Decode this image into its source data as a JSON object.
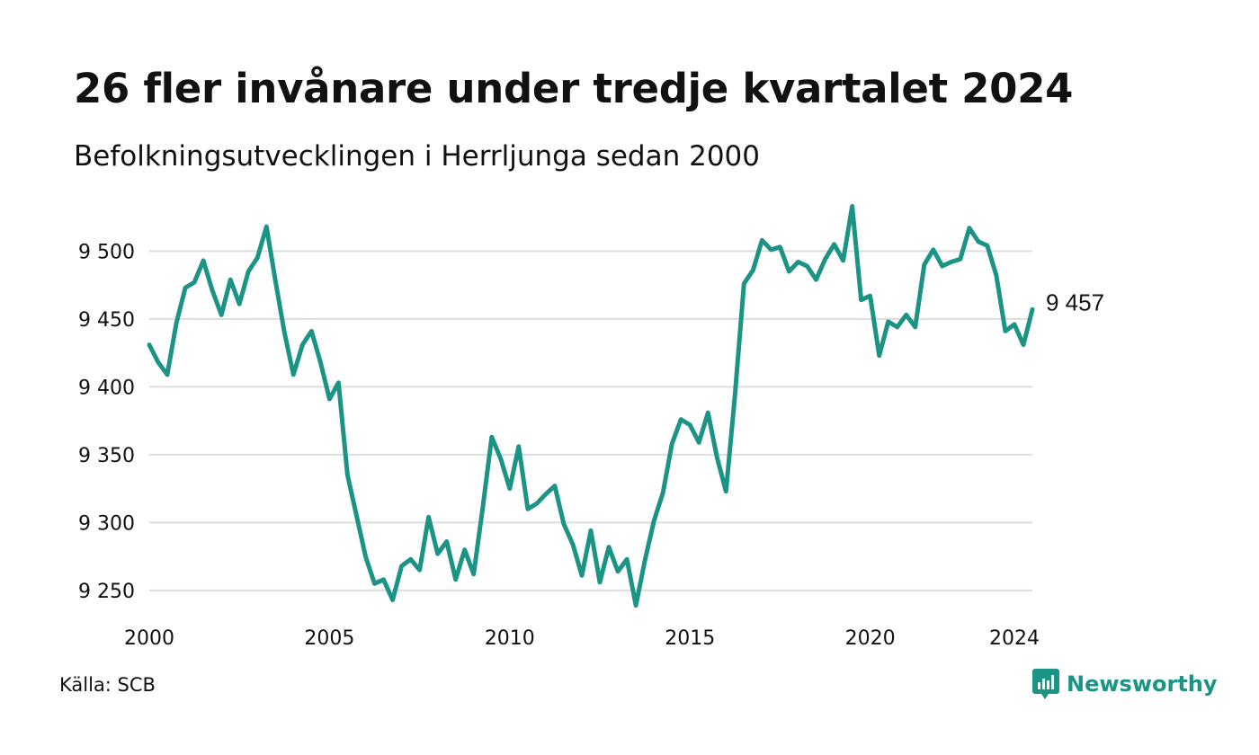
{
  "title": "26 fler invånare under tredje kvartalet 2024",
  "subtitle": "Befolkningsutvecklingen i Herrljunga sedan 2000",
  "source": "Källa: SCB",
  "brand": {
    "name": "Newsworthy",
    "icon": "newsworthy-logo-icon"
  },
  "colors": {
    "line": "#1b9485",
    "grid": "#dddddd",
    "text": "#111111",
    "brand": "#1b9485"
  },
  "chart_data": {
    "type": "line",
    "title": "26 fler invånare under tredje kvartalet 2024",
    "subtitle": "Befolkningsutvecklingen i Herrljunga sedan 2000",
    "xlabel": "",
    "ylabel": "",
    "xlim": [
      2000,
      2024.5
    ],
    "ylim": [
      9240,
      9534
    ],
    "grid": true,
    "x_ticks": [
      2000,
      2005,
      2010,
      2015,
      2020,
      2024
    ],
    "x_tick_labels": [
      "2000",
      "2005",
      "2010",
      "2015",
      "2020",
      "2024"
    ],
    "y_ticks": [
      9250,
      9300,
      9350,
      9400,
      9450,
      9500
    ],
    "y_tick_labels": [
      "9 250",
      "9 300",
      "9 350",
      "9 400",
      "9 450",
      "9 500"
    ],
    "end_label": "9 457",
    "series": [
      {
        "x_start": "2000 Q1",
        "step": "quarter",
        "values": [
          9431,
          9418,
          9409,
          9447,
          9473,
          9477,
          9493,
          9471,
          9453,
          9479,
          9461,
          9485,
          9495,
          9518,
          9478,
          9440,
          9409,
          9431,
          9441,
          9418,
          9391,
          9403,
          9335,
          9305,
          9275,
          9255,
          9258,
          9243,
          9268,
          9273,
          9265,
          9304,
          9277,
          9286,
          9258,
          9280,
          9262,
          9311,
          9363,
          9347,
          9325,
          9356,
          9310,
          9314,
          9321,
          9327,
          9299,
          9284,
          9261,
          9294,
          9256,
          9282,
          9264,
          9273,
          9239,
          9272,
          9301,
          9322,
          9358,
          9376,
          9372,
          9359,
          9381,
          9348,
          9323,
          9394,
          9476,
          9486,
          9508,
          9501,
          9503,
          9485,
          9492,
          9489,
          9479,
          9494,
          9505,
          9493,
          9533,
          9464,
          9467,
          9423,
          9448,
          9444,
          9453,
          9444,
          9490,
          9501,
          9489,
          9492,
          9494,
          9517,
          9507,
          9504,
          9482,
          9441,
          9446,
          9431,
          9457
        ]
      }
    ]
  }
}
